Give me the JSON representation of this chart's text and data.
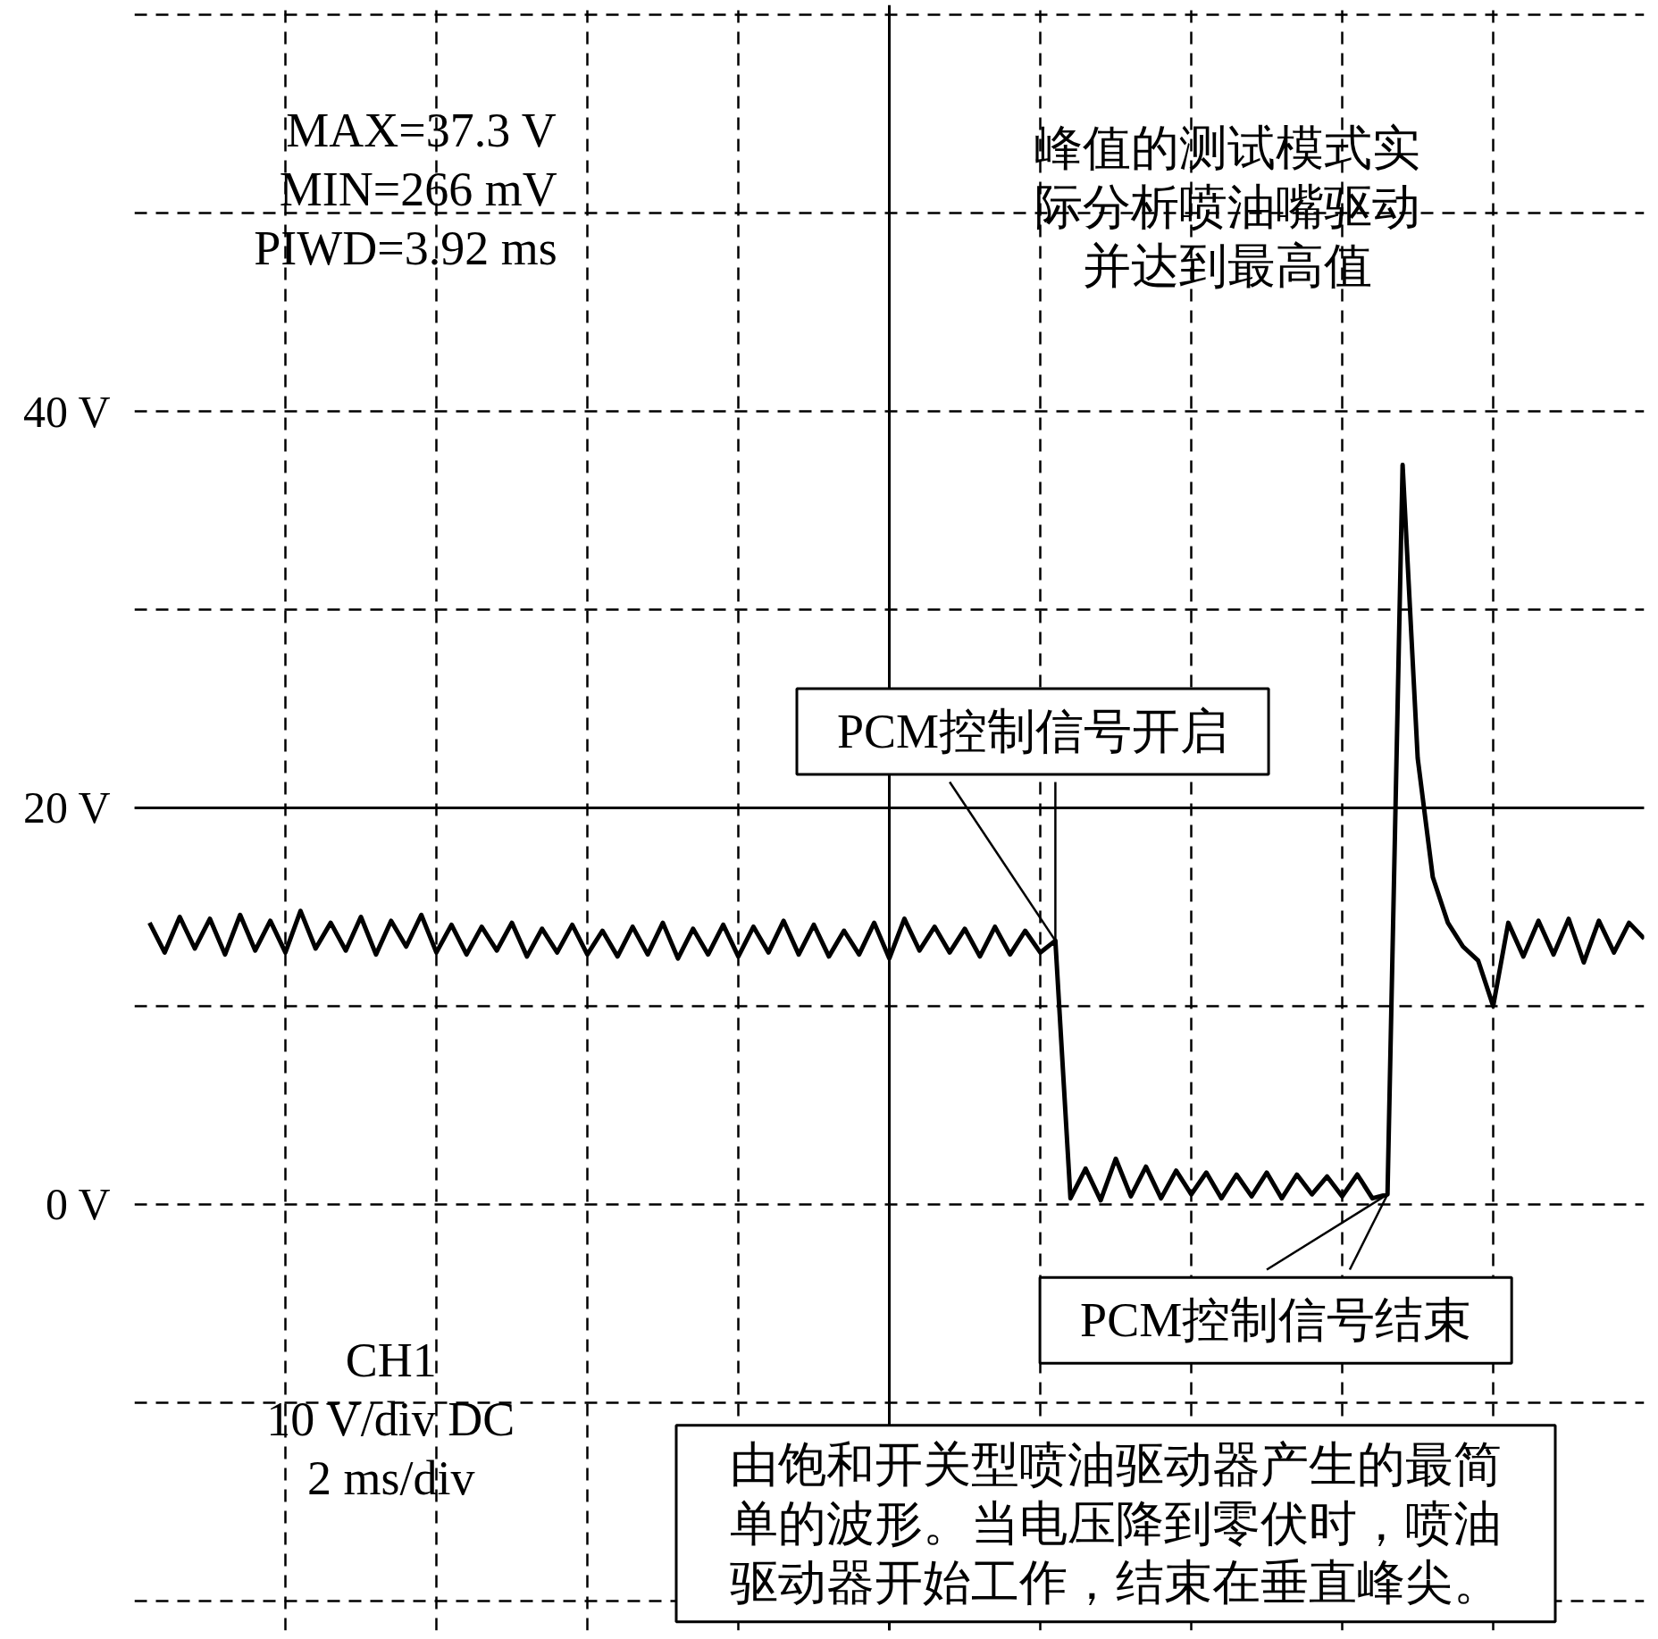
{
  "chart_data": {
    "type": "line",
    "categories": [
      null,
      null,
      null,
      null,
      null,
      null,
      null,
      null,
      null,
      null,
      null,
      null,
      null,
      null,
      null,
      null,
      null,
      null,
      null,
      null,
      null,
      null,
      null,
      null,
      null,
      null,
      null,
      null,
      null,
      null,
      null,
      null,
      null,
      null,
      null,
      null,
      null,
      null,
      null,
      null,
      null,
      null,
      null,
      null,
      null,
      null,
      null,
      null,
      null,
      null,
      null,
      null,
      null,
      null,
      null,
      null,
      null,
      null,
      null,
      null,
      null,
      null,
      null,
      null,
      null,
      null,
      null,
      null,
      null,
      null,
      null,
      null,
      null,
      null,
      null,
      null,
      null,
      null,
      null,
      null,
      null,
      null,
      null,
      null,
      null,
      null,
      null,
      null,
      null,
      null,
      null,
      null,
      null,
      null,
      null,
      null,
      null,
      null,
      null,
      null,
      null
    ],
    "series": [
      {
        "color": "#000000",
        "values": [
          null,
          14.2,
          12.7,
          14.5,
          12.9,
          14.4,
          12.6,
          14.6,
          12.8,
          14.3,
          12.7,
          14.8,
          12.9,
          14.2,
          12.8,
          14.5,
          12.6,
          14.3,
          13.0,
          14.6,
          12.7,
          14.1,
          12.6,
          14.0,
          12.8,
          14.2,
          12.5,
          13.9,
          12.7,
          14.1,
          12.6,
          13.8,
          12.5,
          14.0,
          12.6,
          14.2,
          12.4,
          13.9,
          12.6,
          14.1,
          12.5,
          14.0,
          12.7,
          14.3,
          12.6,
          14.1,
          12.5,
          13.8,
          12.6,
          14.2,
          12.4,
          14.4,
          12.8,
          14.0,
          12.7,
          13.9,
          12.5,
          14.0,
          12.6,
          13.8,
          12.7,
          13.3,
          0.3,
          1.8,
          0.2,
          2.3,
          0.4,
          1.9,
          0.3,
          1.7,
          0.5,
          1.6,
          0.3,
          1.5,
          0.4,
          1.6,
          0.3,
          1.5,
          0.5,
          1.4,
          0.4,
          1.5,
          0.3,
          0.5,
          37.3,
          22.5,
          16.5,
          14.2,
          13.0,
          12.3,
          10.0,
          14.2,
          12.5,
          14.3,
          12.6,
          14.4,
          12.2,
          14.3,
          12.7,
          14.2,
          13.4
        ]
      }
    ],
    "ylim": [
      -21.5,
      60.5
    ],
    "yticks": [
      {
        "value": -20,
        "label": null
      },
      {
        "value": -10,
        "label": null
      },
      {
        "value": 0,
        "label": "0 V"
      },
      {
        "value": 10,
        "label": null
      },
      {
        "value": 20,
        "label": "20 V"
      },
      {
        "value": 30,
        "label": null
      },
      {
        "value": 40,
        "label": "40 V"
      },
      {
        "value": 50,
        "label": null
      },
      {
        "value": 60,
        "label": null
      }
    ],
    "grid": true,
    "line_style": "solid",
    "annotations": [
      "MAX=37.3 V\nMIN=266 mV\nPIWD=3.92 ms",
      "峰值的测试模式实际分析喷油嘴驱动并达到最高值",
      "PCM控制信号开启",
      "PCM控制信号结束",
      "CH1\n10 V/div DC\n2 ms/div",
      "由饱和开关型喷油驱动器产生的最简单的波形。当电压降到零伏时，喷油驱动器开始工作，结束在垂直峰尖。"
    ]
  }
}
